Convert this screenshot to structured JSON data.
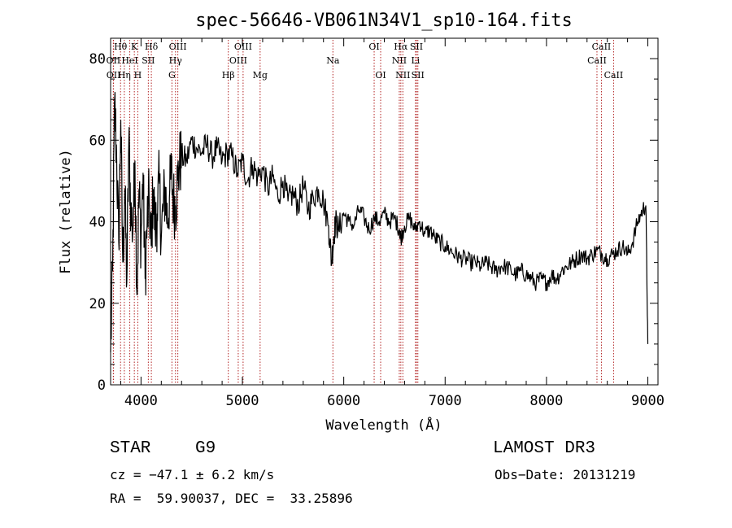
{
  "chart_data": {
    "type": "line",
    "title": "spec-56646-VB061N34V1_sp10-164.fits",
    "xlabel": "Wavelength (Å)",
    "ylabel": "Flux (relative)",
    "xlim": [
      3700,
      9100
    ],
    "ylim": [
      0,
      85
    ],
    "xticks": [
      4000,
      5000,
      6000,
      7000,
      8000,
      9000
    ],
    "yticks": [
      0,
      20,
      40,
      60,
      80
    ],
    "series": [
      {
        "name": "spectrum",
        "x": [
          3700,
          3720,
          3740,
          3760,
          3780,
          3800,
          3820,
          3840,
          3860,
          3880,
          3900,
          3920,
          3940,
          3960,
          3980,
          4000,
          4020,
          4040,
          4060,
          4080,
          4100,
          4120,
          4140,
          4160,
          4180,
          4200,
          4220,
          4240,
          4260,
          4280,
          4300,
          4320,
          4340,
          4360,
          4380,
          4400,
          4450,
          4500,
          4550,
          4600,
          4650,
          4700,
          4750,
          4800,
          4850,
          4900,
          4950,
          5000,
          5050,
          5100,
          5150,
          5200,
          5250,
          5300,
          5350,
          5400,
          5450,
          5500,
          5550,
          5600,
          5650,
          5700,
          5750,
          5800,
          5850,
          5880,
          5900,
          5920,
          5950,
          6000,
          6050,
          6100,
          6150,
          6200,
          6250,
          6300,
          6350,
          6400,
          6450,
          6500,
          6550,
          6563,
          6600,
          6650,
          6700,
          6750,
          6800,
          6850,
          6900,
          6950,
          7000,
          7050,
          7100,
          7150,
          7200,
          7250,
          7300,
          7350,
          7400,
          7450,
          7500,
          7550,
          7600,
          7650,
          7700,
          7750,
          7800,
          7850,
          7900,
          7950,
          8000,
          8050,
          8100,
          8150,
          8200,
          8250,
          8300,
          8350,
          8400,
          8450,
          8500,
          8550,
          8600,
          8650,
          8700,
          8750,
          8800,
          8850,
          8900,
          8950,
          8980,
          9000
        ],
        "y": [
          8,
          28,
          70,
          55,
          35,
          65,
          30,
          48,
          25,
          60,
          42,
          38,
          55,
          22,
          48,
          35,
          52,
          26,
          40,
          45,
          34,
          48,
          38,
          42,
          50,
          36,
          44,
          48,
          40,
          46,
          52,
          45,
          44,
          50,
          54,
          56,
          55,
          60,
          58,
          57,
          59,
          56,
          58,
          55,
          57,
          56,
          52,
          55,
          50,
          54,
          51,
          53,
          48,
          51,
          46,
          50,
          45,
          47,
          44,
          49,
          43,
          46,
          48,
          45,
          39,
          30,
          36,
          40,
          38,
          42,
          40,
          39,
          43,
          41,
          38,
          41,
          40,
          42,
          40,
          41,
          38,
          36,
          39,
          41,
          38,
          40,
          37,
          38,
          36,
          35,
          34,
          33,
          32,
          31,
          31,
          30,
          30,
          29,
          30,
          29,
          28,
          29,
          29,
          28,
          27,
          28,
          27,
          26,
          25,
          26,
          25,
          27,
          26,
          28,
          29,
          30,
          31,
          32,
          31,
          32,
          33,
          32,
          31,
          32,
          33,
          34,
          32,
          35,
          40,
          43,
          44,
          10
        ]
      }
    ],
    "spectral_lines": [
      {
        "label": "Hθ",
        "wavelength": 3798,
        "row": 0
      },
      {
        "label": "OII",
        "wavelength": 3727,
        "row": 1
      },
      {
        "label": "OII",
        "wavelength": 3729,
        "row": 2
      },
      {
        "label": "K",
        "wavelength": 3934,
        "row": 0
      },
      {
        "label": "HeI",
        "wavelength": 3889,
        "row": 1
      },
      {
        "label": "Hη",
        "wavelength": 3835,
        "row": 2
      },
      {
        "label": "Hδ",
        "wavelength": 4102,
        "row": 0
      },
      {
        "label": "SII",
        "wavelength": 4072,
        "row": 1
      },
      {
        "label": "H",
        "wavelength": 3968,
        "row": 2
      },
      {
        "label": "OIII",
        "wavelength": 4363,
        "row": 0
      },
      {
        "label": "Hγ",
        "wavelength": 4340,
        "row": 1
      },
      {
        "label": "G",
        "wavelength": 4305,
        "row": 2
      },
      {
        "label": "OIII",
        "wavelength": 5007,
        "row": 0
      },
      {
        "label": "OIII",
        "wavelength": 4959,
        "row": 1
      },
      {
        "label": "Hβ",
        "wavelength": 4861,
        "row": 2
      },
      {
        "label": "Mg",
        "wavelength": 5175,
        "row": 2
      },
      {
        "label": "Na",
        "wavelength": 5893,
        "row": 1
      },
      {
        "label": "OI",
        "wavelength": 6300,
        "row": 0
      },
      {
        "label": "OI",
        "wavelength": 6364,
        "row": 2
      },
      {
        "label": "Hα",
        "wavelength": 6563,
        "row": 0
      },
      {
        "label": "SII",
        "wavelength": 6717,
        "row": 0
      },
      {
        "label": "NII",
        "wavelength": 6548,
        "row": 1
      },
      {
        "label": "Li",
        "wavelength": 6708,
        "row": 1
      },
      {
        "label": "NII",
        "wavelength": 6583,
        "row": 2
      },
      {
        "label": "SII",
        "wavelength": 6731,
        "row": 2
      },
      {
        "label": "CaII",
        "wavelength": 8542,
        "row": 0
      },
      {
        "label": "CaII",
        "wavelength": 8498,
        "row": 1
      },
      {
        "label": "CaII",
        "wavelength": 8662,
        "row": 2
      }
    ]
  },
  "info": {
    "object_type": "STAR",
    "subclass": "G9",
    "survey": "LAMOST DR3",
    "cz": "cz = −47.1 ± 6.2 km/s",
    "obs_date": "Obs−Date: 20131219",
    "coords": "RA =  59.90037, DEC =  33.25896"
  },
  "colors": {
    "spectrum": "#000000",
    "line_marker": "#b22222"
  }
}
